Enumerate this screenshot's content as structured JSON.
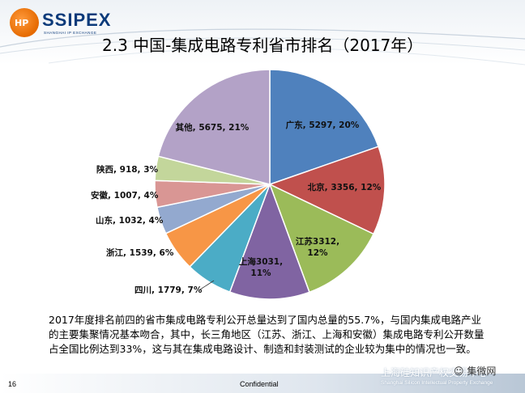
{
  "header": {
    "logo_text": "SSIPEX",
    "logo_badge": "HP",
    "logo_sub": "SHANGHAI IP EXCHANGE",
    "title": "2.3 中国-集成电路专利省市排名（2017年）"
  },
  "colors": {
    "accent_blue": "#1f4e8c"
  },
  "chart_data": {
    "type": "pie",
    "title": "",
    "slices": [
      {
        "name": "广东",
        "value": 5297,
        "pct": "20%",
        "label": "广东, 5297, 20%",
        "color": "#4f81bd"
      },
      {
        "name": "北京",
        "value": 3356,
        "pct": "12%",
        "label": "北京, 3356, 12%",
        "color": "#c0504d"
      },
      {
        "name": "江苏",
        "value": 3312,
        "pct": "12%",
        "label_lines": [
          "江苏3312,",
          "12%"
        ],
        "color": "#9bbb59"
      },
      {
        "name": "上海",
        "value": 3031,
        "pct": "11%",
        "label_lines": [
          "上海3031,",
          "11%"
        ],
        "color": "#8064a2"
      },
      {
        "name": "四川",
        "value": 1779,
        "pct": "7%",
        "label": "四川, 1779, 7%",
        "color": "#4bacc6"
      },
      {
        "name": "浙江",
        "value": 1539,
        "pct": "6%",
        "label": "浙江, 1539, 6%",
        "color": "#f79646"
      },
      {
        "name": "山东",
        "value": 1032,
        "pct": "4%",
        "label": "山东, 1032, 4%",
        "color": "#93a9cf"
      },
      {
        "name": "安徽",
        "value": 1007,
        "pct": "4%",
        "label": "安徽, 1007, 4%",
        "color": "#d99694"
      },
      {
        "name": "陕西",
        "value": 918,
        "pct": "3%",
        "label": "陕西, 918, 3%",
        "color": "#c3d69b"
      },
      {
        "name": "其他",
        "value": 5675,
        "pct": "21%",
        "label": "其他, 5675, 21%",
        "color": "#b3a2c7"
      }
    ]
  },
  "body": {
    "paragraph": "2017年度排名前四的省市集成电路专利公开总量达到了国内总量的55.7%，与国内集成电路产业的主要集聚情况基本吻合，其中，长三角地区（江苏、浙江、上海和安徽）集成电路专利公开数量占全国比例达到33%，这与其在集成电路设计、制造和封装测试的企业较为集中的情况也一致。"
  },
  "footer": {
    "page_number": "16",
    "confidential": "Confidential",
    "org_cn": "上海硅知识产权交易中心",
    "org_en": "Shanghai Silicon Intellectual Property Exchange",
    "wechat": "集微网"
  }
}
